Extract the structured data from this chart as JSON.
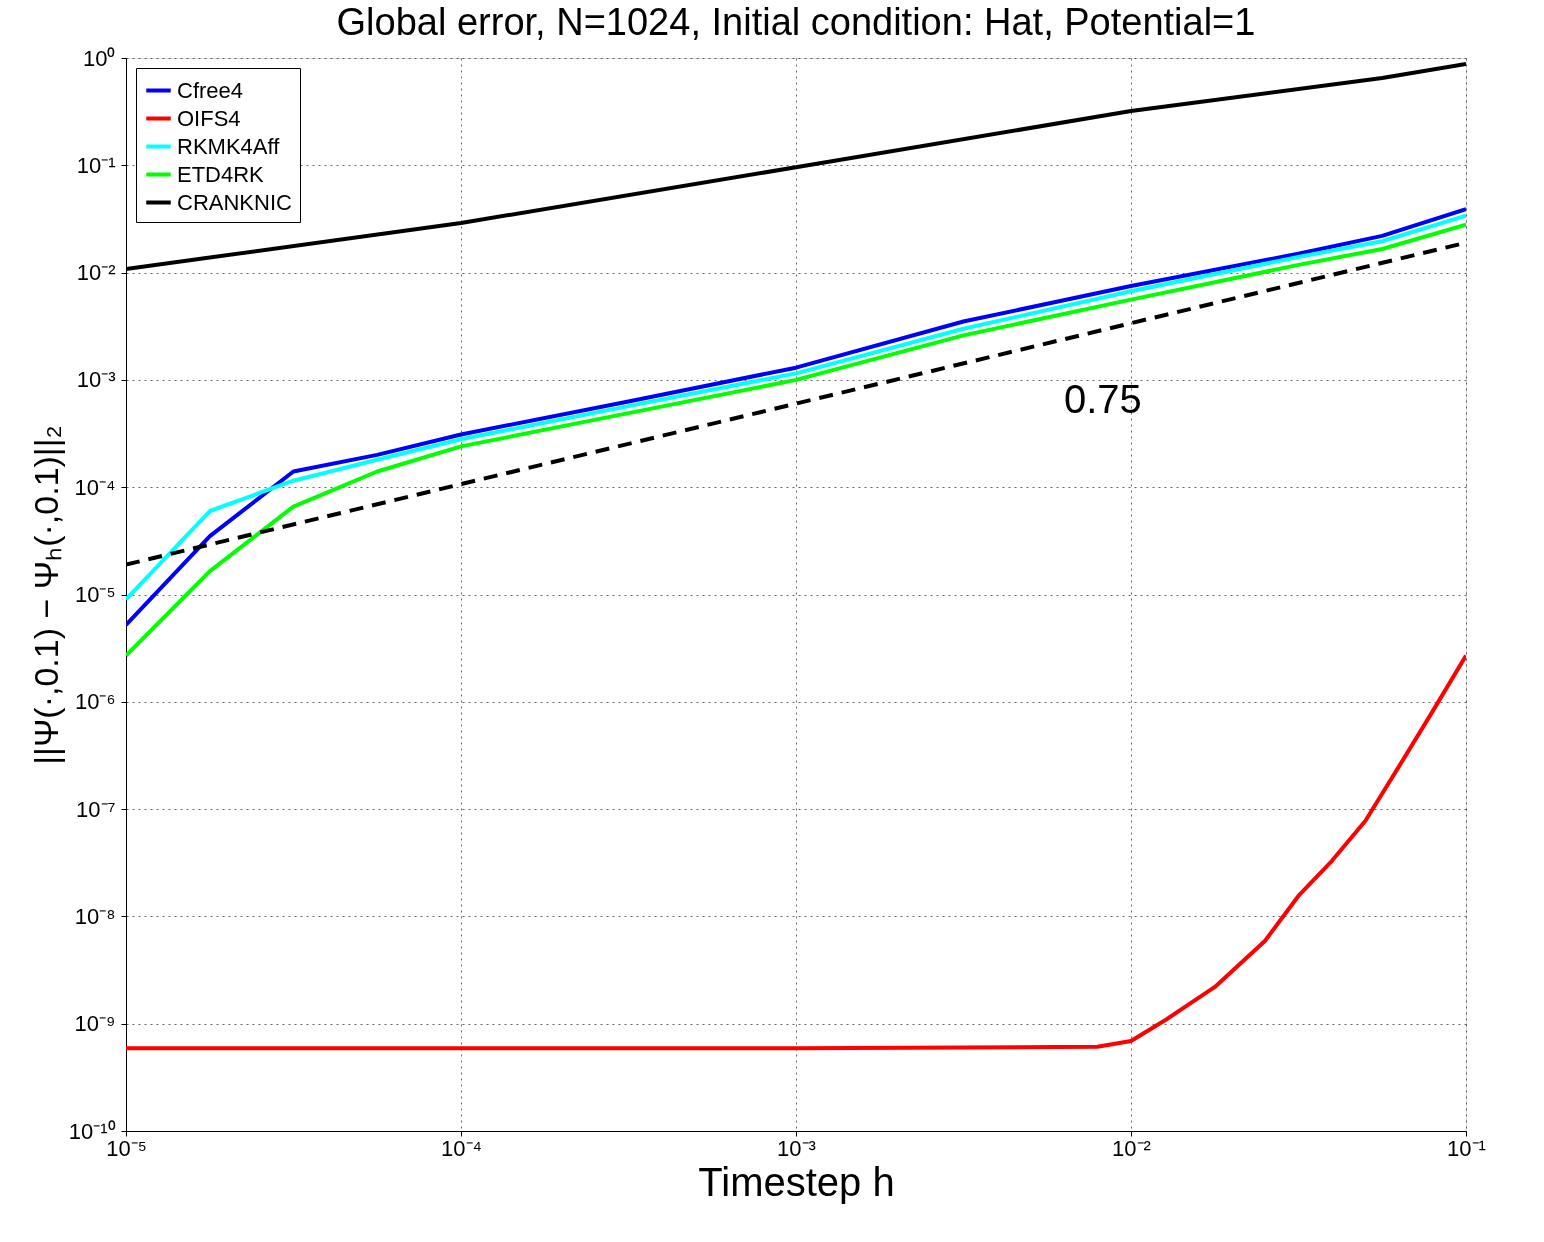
{
  "chart_data": {
    "type": "line",
    "title": "Global error, N=1024, Initial condition: Hat, Potential=1",
    "xlabel": "Timestep h",
    "ylabel": "||Ψ(·,0.1) − Ψₕ(·,0.1)||₂",
    "log": "xy",
    "grid": true,
    "legend": "top left",
    "marker": "none",
    "xlim": [
      1e-05,
      0.1
    ],
    "ylim": [
      1e-10,
      1
    ],
    "xticks": [
      {
        "value": 1e-05,
        "label": "10⁻⁵"
      },
      {
        "value": 0.0001,
        "label": "10⁻⁴"
      },
      {
        "value": 0.001,
        "label": "10⁻³"
      },
      {
        "value": 0.01,
        "label": "10⁻²"
      },
      {
        "value": 0.1,
        "label": "10⁻¹"
      }
    ],
    "yticks": [
      {
        "value": 1e-10,
        "label": "10⁻¹⁰"
      },
      {
        "value": 1e-09,
        "label": "10⁻⁹"
      },
      {
        "value": 1e-08,
        "label": "10⁻⁸"
      },
      {
        "value": 1e-07,
        "label": "10⁻⁷"
      },
      {
        "value": 1e-06,
        "label": "10⁻⁶"
      },
      {
        "value": 1e-05,
        "label": "10⁻⁵"
      },
      {
        "value": 0.0001,
        "label": "10⁻⁴"
      },
      {
        "value": 0.001,
        "label": "10⁻³"
      },
      {
        "value": 0.01,
        "label": "10⁻²"
      },
      {
        "value": 0.1,
        "label": "10⁻¹"
      },
      {
        "value": 1,
        "label": "10⁰"
      }
    ],
    "series": [
      {
        "name": "Cfree4",
        "color": "#0000ff",
        "line_style": "solid",
        "x": [
          1e-05,
          1.78e-05,
          3.16e-05,
          5.62e-05,
          0.0001,
          0.000316,
          0.001,
          0.00316,
          0.01,
          0.0316,
          0.0562,
          0.1
        ],
        "values": [
          5.2e-06,
          3.5e-05,
          0.00014,
          0.0002,
          0.00031,
          0.00063,
          0.0013,
          0.0035,
          0.0075,
          0.015,
          0.022,
          0.039
        ]
      },
      {
        "name": "OIFS4",
        "color": "#ff0000",
        "line_style": "solid",
        "x": [
          1e-05,
          0.0001,
          0.001,
          0.00794,
          0.01,
          0.0126,
          0.0178,
          0.0251,
          0.0316,
          0.0398,
          0.0501,
          0.0631,
          0.0794,
          0.1
        ],
        "values": [
          5.9e-10,
          5.9e-10,
          5.9e-10,
          6.1e-10,
          6.9e-10,
          1.07e-09,
          2.2e-09,
          5.9e-09,
          1.55e-08,
          3.3e-08,
          7.8e-08,
          2.5e-07,
          8.1e-07,
          2.7e-06
        ]
      },
      {
        "name": "RKMK4Aff",
        "color": "#00ffff",
        "line_style": "solid",
        "x": [
          1e-05,
          1.78e-05,
          3.16e-05,
          5.62e-05,
          0.0001,
          0.000316,
          0.001,
          0.00316,
          0.01,
          0.0316,
          0.0562,
          0.1
        ],
        "values": [
          9e-06,
          6e-05,
          0.000115,
          0.00018,
          0.00028,
          0.00057,
          0.00115,
          0.003,
          0.0067,
          0.014,
          0.0196,
          0.034
        ]
      },
      {
        "name": "ETD4RK",
        "color": "#00ff00",
        "line_style": "solid",
        "x": [
          1e-05,
          1.78e-05,
          3.16e-05,
          5.62e-05,
          0.0001,
          0.000316,
          0.001,
          0.00316,
          0.01,
          0.0316,
          0.0562,
          0.1
        ],
        "values": [
          2.7e-06,
          1.65e-05,
          6.6e-05,
          0.00014,
          0.00024,
          0.00049,
          0.001,
          0.0026,
          0.0056,
          0.0118,
          0.0166,
          0.028
        ]
      },
      {
        "name": "CRANKNIC",
        "color": "#000000",
        "line_style": "solid",
        "x": [
          1e-05,
          0.0001,
          0.001,
          0.01,
          0.0562,
          0.1
        ],
        "values": [
          0.0108,
          0.029,
          0.096,
          0.32,
          0.65,
          0.88
        ]
      },
      {
        "color": "#000000",
        "line_style": "dashed",
        "x": [
          1e-05,
          0.1
        ],
        "values": [
          1.9e-05,
          0.019
        ]
      }
    ],
    "annotations": [
      "0.75"
    ]
  }
}
